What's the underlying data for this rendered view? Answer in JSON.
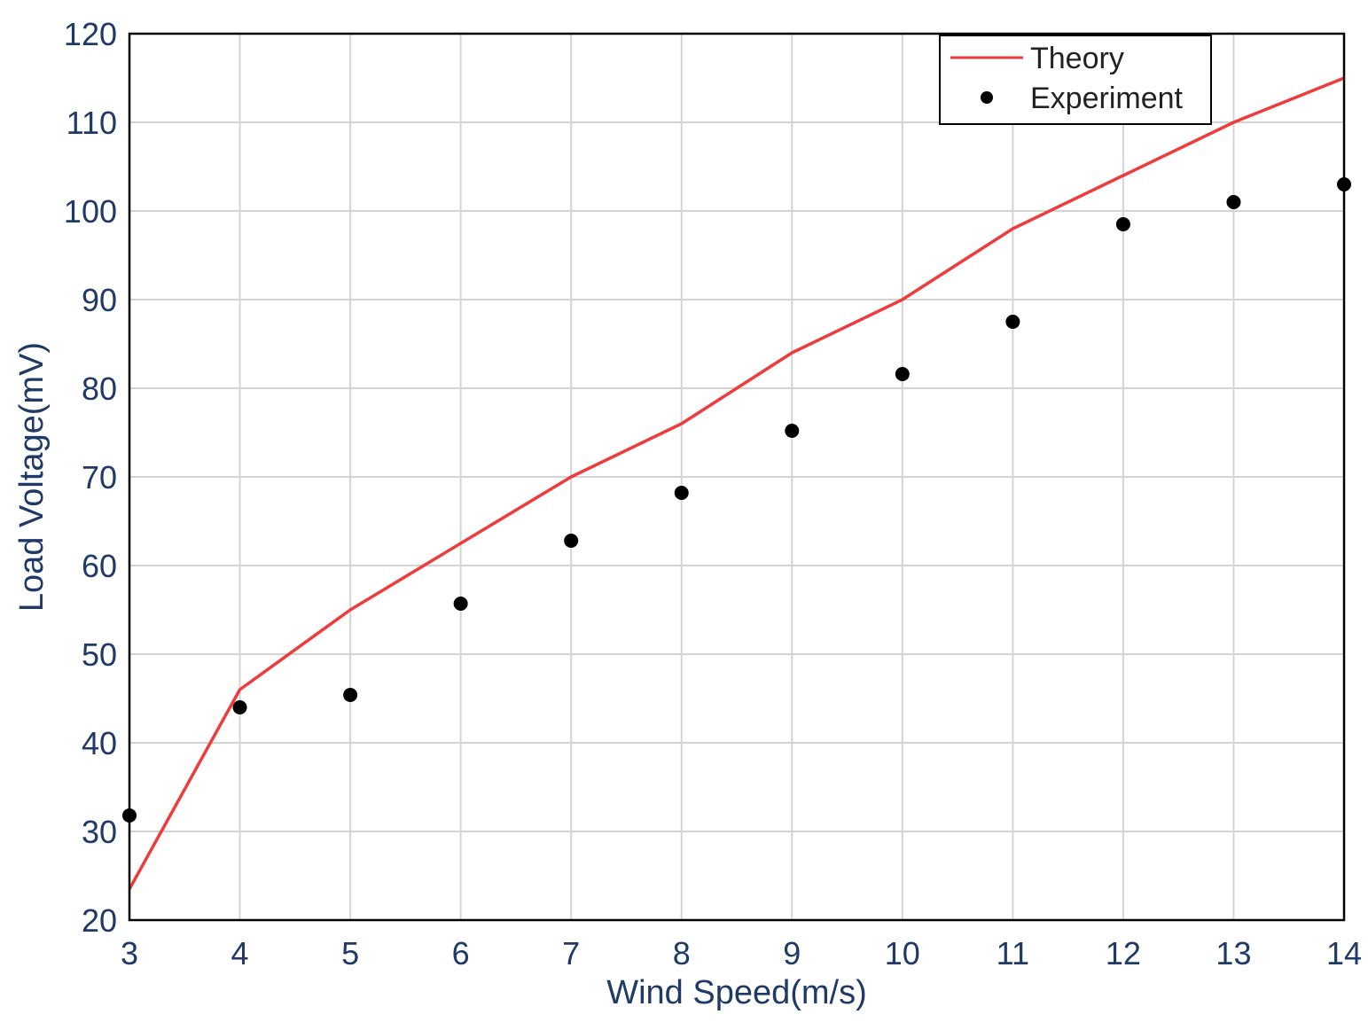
{
  "chart_data": {
    "type": "line",
    "title": "",
    "xlabel": "Wind Speed(m/s)",
    "ylabel": "Load Voltage(mV)",
    "xlim": [
      3,
      14
    ],
    "ylim": [
      20,
      120
    ],
    "xticks": [
      3,
      4,
      5,
      6,
      7,
      8,
      9,
      10,
      11,
      12,
      13,
      14
    ],
    "yticks": [
      20,
      30,
      40,
      50,
      60,
      70,
      80,
      90,
      100,
      110,
      120
    ],
    "grid": true,
    "legend_position": "top-right",
    "series": [
      {
        "name": "Theory",
        "style": "line",
        "color": "#ef3b3b",
        "x": [
          3,
          4,
          5,
          6,
          7,
          8,
          9,
          10,
          11,
          12,
          13,
          14
        ],
        "y": [
          23.5,
          46,
          55,
          62.5,
          70,
          76,
          84,
          90,
          98,
          104,
          110,
          115
        ]
      },
      {
        "name": "Experiment",
        "style": "marker",
        "color": "#000000",
        "x": [
          3,
          4,
          5,
          6,
          7,
          8,
          9,
          10,
          11,
          12,
          13,
          14
        ],
        "y": [
          31.8,
          44,
          45.4,
          55.7,
          62.8,
          68.2,
          75.2,
          81.6,
          87.5,
          98.5,
          101,
          103
        ]
      }
    ]
  }
}
